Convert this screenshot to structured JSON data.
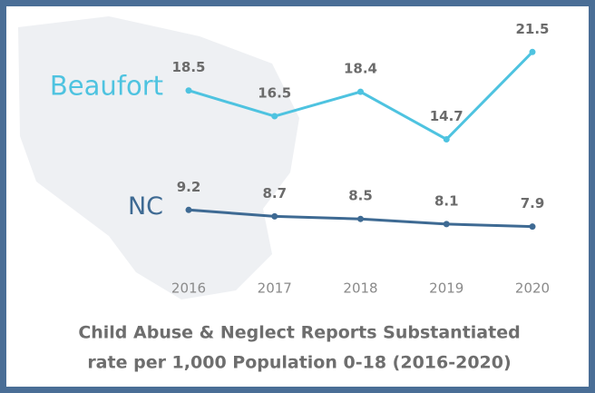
{
  "chart_data": {
    "type": "line",
    "title": "Child Abuse & Neglect Reports Substantiated",
    "subtitle": "rate per 1,000 Population 0-18 (2016-2020)",
    "categories": [
      "2016",
      "2017",
      "2018",
      "2019",
      "2020"
    ],
    "series": [
      {
        "name": "Beaufort",
        "color": "#4ec3e0",
        "values": [
          18.5,
          16.5,
          18.4,
          14.7,
          21.5
        ]
      },
      {
        "name": "NC",
        "color": "#3e6a93",
        "values": [
          9.2,
          8.7,
          8.5,
          8.1,
          7.9
        ]
      }
    ],
    "ylim": [
      3,
      23.5
    ]
  }
}
